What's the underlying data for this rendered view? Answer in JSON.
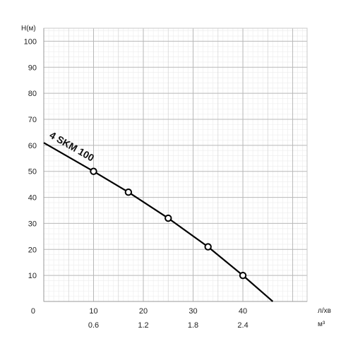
{
  "chart_data": {
    "type": "line",
    "title": "",
    "ylabel": "H(м)",
    "xlabel_primary": "л/хв",
    "xlabel_secondary": "м³",
    "zero_label": "0",
    "xlim": [
      0,
      52.9
    ],
    "ylim": [
      0,
      105
    ],
    "y_ticks": [
      10,
      20,
      30,
      40,
      50,
      60,
      70,
      80,
      90,
      100
    ],
    "y_tick_labels": [
      "10",
      "20",
      "30",
      "40",
      "50",
      "60",
      "70",
      "80",
      "90",
      "100"
    ],
    "x_ticks": [
      10,
      20,
      30,
      40
    ],
    "x_tick_labels": [
      "10",
      "20",
      "30",
      "40"
    ],
    "x_secondary_tick_labels": [
      "0.6",
      "1.2",
      "1.8",
      "2.4"
    ],
    "grid": true,
    "series": [
      {
        "name": "4 SKM 100",
        "color": "#000000",
        "x": [
          0,
          10,
          17,
          25,
          33,
          40,
          46
        ],
        "y": [
          61,
          50,
          42,
          32,
          21,
          10,
          0
        ],
        "markers": [
          {
            "x": 10,
            "y": 50
          },
          {
            "x": 17,
            "y": 42
          },
          {
            "x": 25,
            "y": 32
          },
          {
            "x": 33,
            "y": 21
          },
          {
            "x": 40,
            "y": 10
          }
        ]
      }
    ]
  }
}
